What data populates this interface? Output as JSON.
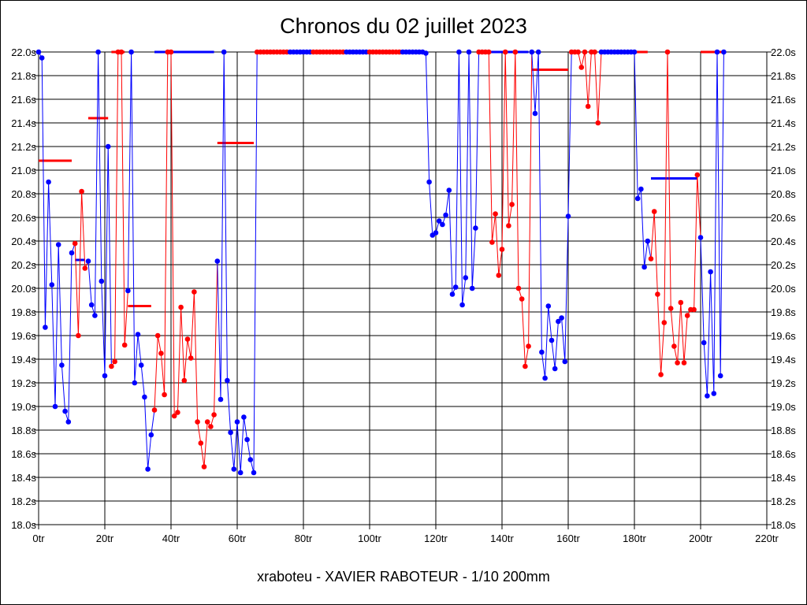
{
  "chart_data": {
    "type": "line",
    "title": "Chronos du 02 juillet 2023",
    "footer": "xraboteu - XAVIER RABOTEUR - 1/10 200mm",
    "xlim": [
      0,
      220
    ],
    "ylim": [
      18.0,
      22.0
    ],
    "x_ticks": [
      0,
      20,
      40,
      60,
      80,
      100,
      120,
      140,
      160,
      180,
      200,
      220
    ],
    "x_tick_labels": [
      "0tr",
      "20tr",
      "40tr",
      "60tr",
      "80tr",
      "100tr",
      "120tr",
      "140tr",
      "160tr",
      "180tr",
      "200tr",
      "220tr"
    ],
    "y_ticks": [
      18.0,
      18.2,
      18.4,
      18.6,
      18.8,
      19.0,
      19.2,
      19.4,
      19.6,
      19.8,
      20.0,
      20.2,
      20.4,
      20.6,
      20.8,
      21.0,
      21.2,
      21.4,
      21.6,
      21.8,
      22.0
    ],
    "y_tick_labels": [
      "18.0s",
      "18.2s",
      "18.4s",
      "18.6s",
      "18.8s",
      "19.0s",
      "19.2s",
      "19.4s",
      "19.6s",
      "19.8s",
      "20.0s",
      "20.2s",
      "20.4s",
      "20.6s",
      "20.8s",
      "21.0s",
      "21.2s",
      "21.4s",
      "21.6s",
      "21.8s",
      "22.0s"
    ],
    "grid": true,
    "colors": {
      "red": "#ff0000",
      "blue": "#0000ff"
    },
    "series": [
      {
        "color": "blue",
        "x": [
          0,
          1,
          2,
          3,
          4,
          5,
          6,
          7,
          8,
          9,
          10
        ],
        "y": [
          22.0,
          21.95,
          19.67,
          20.9,
          20.03,
          19.0,
          20.37,
          19.35,
          18.96,
          18.87,
          20.3
        ]
      },
      {
        "color": "red",
        "x": [
          11,
          12,
          13,
          14
        ],
        "y": [
          20.38,
          19.6,
          20.82,
          20.17
        ]
      },
      {
        "color": "blue",
        "x": [
          15,
          16,
          17,
          18,
          19,
          20,
          21
        ],
        "y": [
          20.23,
          19.86,
          19.77,
          22.0,
          20.06,
          19.26,
          21.2
        ]
      },
      {
        "color": "red",
        "x": [
          22,
          23,
          24,
          25,
          26
        ],
        "y": [
          19.34,
          19.38,
          22.0,
          22.0,
          19.52
        ]
      },
      {
        "color": "blue",
        "x": [
          27,
          28,
          29,
          30,
          31,
          32,
          33,
          34
        ],
        "y": [
          19.98,
          22.0,
          19.2,
          19.61,
          19.35,
          19.08,
          18.47,
          18.76
        ]
      },
      {
        "color": "red",
        "x": [
          35,
          36,
          37,
          38,
          39,
          40,
          41,
          42,
          43,
          44,
          45,
          46,
          47,
          48,
          49,
          50,
          51,
          52,
          53
        ],
        "y": [
          18.97,
          19.6,
          19.45,
          19.1,
          22.0,
          22.0,
          18.92,
          18.95,
          19.84,
          19.22,
          19.57,
          19.41,
          19.97,
          18.87,
          18.69,
          18.49,
          18.87,
          18.83,
          18.93
        ]
      },
      {
        "color": "blue",
        "x": [
          54,
          55,
          56,
          57,
          58,
          59,
          60,
          61,
          62,
          63,
          64,
          65
        ],
        "y": [
          20.23,
          19.06,
          22.0,
          19.22,
          18.78,
          18.47,
          18.87,
          18.44,
          18.91,
          18.72,
          18.55,
          18.44
        ]
      },
      {
        "color": "red",
        "x": [
          66,
          67,
          68,
          69,
          70,
          71,
          72,
          73,
          74,
          75
        ],
        "y": [
          22.0,
          22.0,
          22.0,
          22.0,
          22.0,
          22.0,
          22.0,
          22.0,
          22.0,
          22.0
        ]
      },
      {
        "color": "blue",
        "x": [
          76,
          77,
          78,
          79,
          80,
          81,
          82
        ],
        "y": [
          22.0,
          22.0,
          22.0,
          22.0,
          22.0,
          22.0,
          22.0
        ]
      },
      {
        "color": "red",
        "x": [
          83,
          84,
          85,
          86,
          87,
          88,
          89,
          90,
          91,
          92
        ],
        "y": [
          22.0,
          22.0,
          22.0,
          22.0,
          22.0,
          22.0,
          22.0,
          22.0,
          22.0,
          22.0
        ]
      },
      {
        "color": "blue",
        "x": [
          93,
          94,
          95,
          96,
          97,
          98,
          99
        ],
        "y": [
          22.0,
          22.0,
          22.0,
          22.0,
          22.0,
          22.0,
          22.0
        ]
      },
      {
        "color": "red",
        "x": [
          100,
          101,
          102,
          103,
          104,
          105,
          106,
          107,
          108,
          109
        ],
        "y": [
          22.0,
          22.0,
          22.0,
          22.0,
          22.0,
          22.0,
          22.0,
          22.0,
          22.0,
          22.0
        ]
      },
      {
        "color": "blue",
        "x": [
          110,
          111,
          112,
          113,
          114,
          115,
          116,
          117,
          118,
          119,
          120,
          121,
          122,
          123,
          124,
          125,
          126,
          127,
          128,
          129,
          130,
          131,
          132
        ],
        "y": [
          22.0,
          22.0,
          22.0,
          22.0,
          22.0,
          22.0,
          22.0,
          21.99,
          20.9,
          20.45,
          20.47,
          20.57,
          20.54,
          20.62,
          20.83,
          19.95,
          20.01,
          22.0,
          19.86,
          20.09,
          22.0,
          20.0,
          20.51
        ]
      },
      {
        "color": "red",
        "x": [
          133,
          134,
          135,
          136,
          137,
          138,
          139,
          140,
          141,
          142,
          143,
          144,
          145,
          146,
          147,
          148
        ],
        "y": [
          22.0,
          22.0,
          22.0,
          22.0,
          20.39,
          20.63,
          20.11,
          20.33,
          22.0,
          20.53,
          20.71,
          22.0,
          20.0,
          19.91,
          19.34,
          19.51
        ]
      },
      {
        "color": "blue",
        "x": [
          149,
          150,
          151,
          152,
          153,
          154,
          155,
          156,
          157,
          158,
          159,
          160
        ],
        "y": [
          22.0,
          21.48,
          22.0,
          19.46,
          19.24,
          19.85,
          19.56,
          19.32,
          19.72,
          19.75,
          19.38,
          20.61
        ]
      },
      {
        "color": "red",
        "x": [
          161,
          162,
          163,
          164,
          165,
          166,
          167,
          168,
          169
        ],
        "y": [
          22.0,
          22.0,
          22.0,
          21.87,
          22.0,
          21.54,
          22.0,
          22.0,
          21.4
        ]
      },
      {
        "color": "blue",
        "x": [
          170,
          171,
          172,
          173,
          174,
          175,
          176,
          177,
          178,
          179,
          180,
          181,
          182,
          183,
          184
        ],
        "y": [
          22.0,
          22.0,
          22.0,
          22.0,
          22.0,
          22.0,
          22.0,
          22.0,
          22.0,
          22.0,
          22.0,
          20.76,
          20.84,
          20.18,
          20.4
        ]
      },
      {
        "color": "red",
        "x": [
          185,
          186,
          187,
          188,
          189,
          190,
          191,
          192,
          193,
          194,
          195,
          196,
          197,
          198,
          199
        ],
        "y": [
          20.25,
          20.65,
          19.95,
          19.27,
          19.71,
          22.0,
          19.83,
          19.51,
          19.37,
          19.88,
          19.37,
          19.77,
          19.82,
          19.82,
          20.96
        ]
      },
      {
        "color": "blue",
        "x": [
          200,
          201,
          202,
          203,
          204,
          205,
          206,
          207
        ],
        "y": [
          20.43,
          19.54,
          19.09,
          20.14,
          19.11,
          22.0,
          19.26,
          22.0
        ]
      }
    ],
    "reference_lines": [
      {
        "color": "red",
        "x": [
          0,
          10
        ],
        "y": 21.08
      },
      {
        "color": "blue",
        "x": [
          11,
          14
        ],
        "y": 20.24
      },
      {
        "color": "red",
        "x": [
          15,
          21
        ],
        "y": 21.44
      },
      {
        "color": "red",
        "x": [
          22,
          26
        ],
        "y": 22.0
      },
      {
        "color": "red",
        "x": [
          27,
          34
        ],
        "y": 19.85
      },
      {
        "color": "blue",
        "x": [
          35,
          53
        ],
        "y": 22.0
      },
      {
        "color": "red",
        "x": [
          54,
          65
        ],
        "y": 21.23
      },
      {
        "color": "blue",
        "x": [
          133,
          148
        ],
        "y": 22.0
      },
      {
        "color": "red",
        "x": [
          149,
          160
        ],
        "y": 21.85
      },
      {
        "color": "red",
        "x": [
          170,
          184
        ],
        "y": 22.0
      },
      {
        "color": "blue",
        "x": [
          185,
          199
        ],
        "y": 20.93
      },
      {
        "color": "red",
        "x": [
          200,
          207
        ],
        "y": 22.0
      }
    ]
  }
}
